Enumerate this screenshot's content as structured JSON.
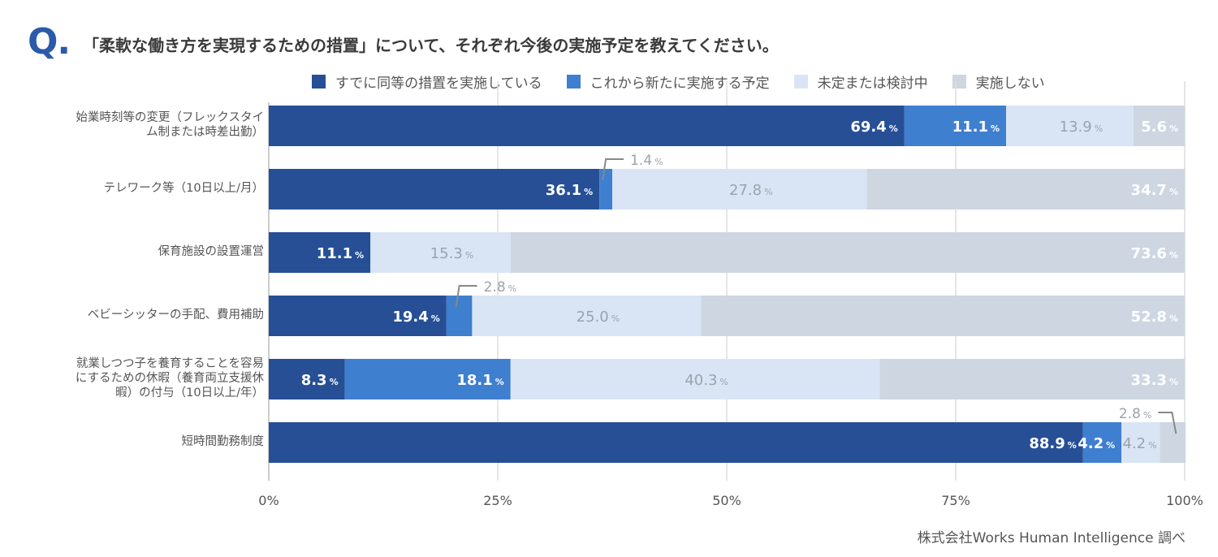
{
  "question": {
    "mark": "Q.",
    "text": "「柔軟な働き方を実現するための措置」について、それぞれ今後の実施予定を教えてください。"
  },
  "source": "株式会社Works Human Intelligence 調べ",
  "chart_data": {
    "type": "bar",
    "orientation": "horizontal",
    "stacked": true,
    "categories": [
      "始業時刻等の変更（フレックスタイム制または時差出勤）",
      "テレワーク等（10日以上/月）",
      "保育施設の設置運営",
      "ベビーシッターの手配、費用補助",
      "就業しつつ子を養育することを容易にするための休暇（養育両立支援休暇）の付与（10日以上/年）",
      "短時間勤務制度"
    ],
    "category_lines": [
      [
        "始業時刻等の変更（フレックスタイ",
        "ム制または時差出勤）"
      ],
      [
        "テレワーク等（10日以上/月）"
      ],
      [
        "保育施設の設置運営"
      ],
      [
        "ベビーシッターの手配、費用補助"
      ],
      [
        "就業しつつ子を養育することを容易",
        "にするための休暇（養育両立支援休",
        "暇）の付与（10日以上/年）"
      ],
      [
        "短時間勤務制度"
      ]
    ],
    "series": [
      {
        "name": "すでに同等の措置を実施している",
        "color": "#264f96",
        "values": [
          69.4,
          36.1,
          11.1,
          19.4,
          8.3,
          88.9
        ]
      },
      {
        "name": "これから新たに実施する予定",
        "color": "#3f7fcf",
        "values": [
          11.1,
          1.4,
          0.0,
          2.8,
          18.1,
          4.2
        ]
      },
      {
        "name": "未定または検討中",
        "color": "#d9e5f5",
        "values": [
          13.9,
          27.8,
          15.3,
          25.0,
          40.3,
          4.2
        ]
      },
      {
        "name": "実施しない",
        "color": "#cdd6e1",
        "values": [
          5.6,
          34.7,
          73.6,
          52.8,
          33.3,
          2.8
        ]
      }
    ],
    "data_labels": [
      [
        "69.4",
        "11.1",
        "13.9",
        "5.6"
      ],
      [
        "36.1",
        "1.4",
        "27.8",
        "34.7"
      ],
      [
        "11.1",
        "",
        "15.3",
        "73.6"
      ],
      [
        "19.4",
        "2.8",
        "25.0",
        "52.8"
      ],
      [
        "8.3",
        "18.1",
        "40.3",
        "33.3"
      ],
      [
        "88.9",
        "4.2",
        "4.2",
        "2.8"
      ]
    ],
    "callout_labels": [
      {
        "row": 1,
        "series": 1
      },
      {
        "row": 3,
        "series": 1
      },
      {
        "row": 5,
        "series": 3
      }
    ],
    "unit": "%",
    "xlim": [
      0,
      100
    ],
    "xticks": [
      0,
      25,
      50,
      75,
      100
    ],
    "xtick_labels": [
      "0%",
      "25%",
      "50%",
      "75%",
      "100%"
    ],
    "grid": true,
    "legend_position": "top"
  }
}
